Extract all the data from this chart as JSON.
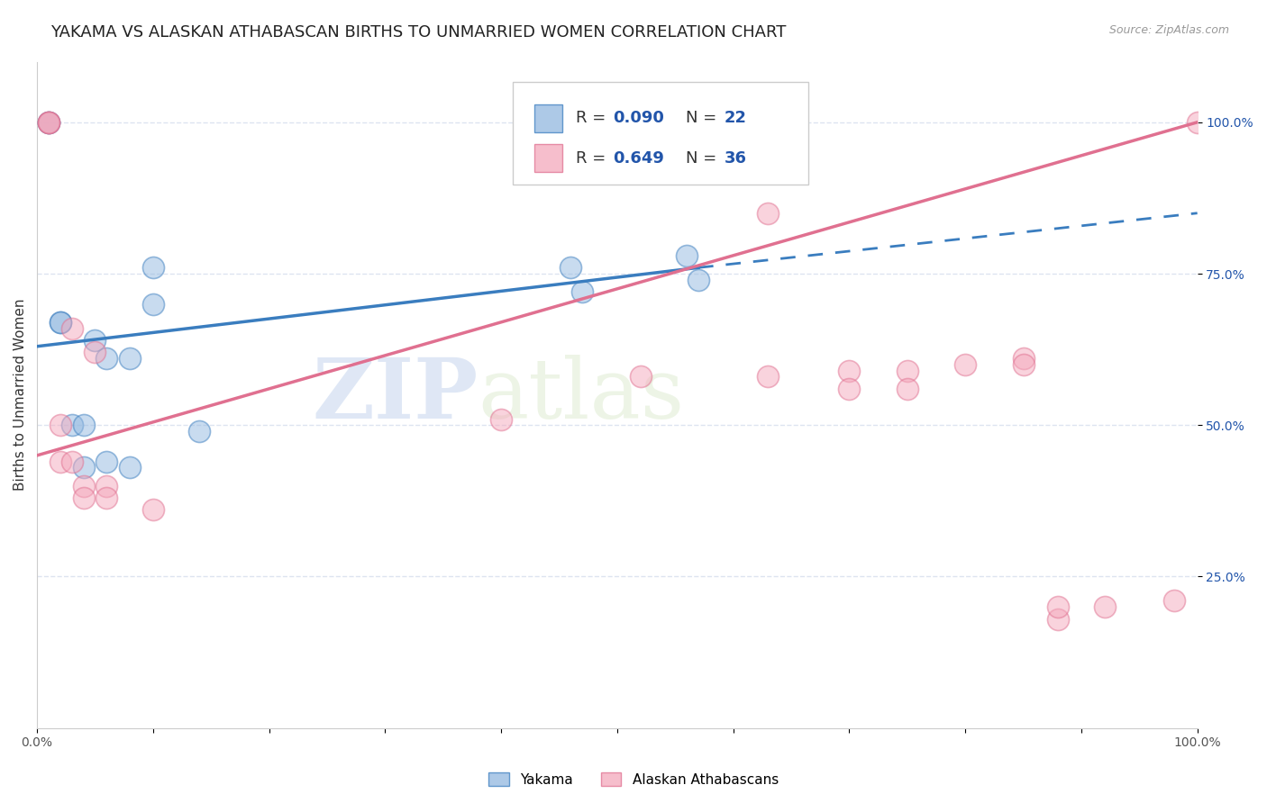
{
  "title": "YAKAMA VS ALASKAN ATHABASCAN BIRTHS TO UNMARRIED WOMEN CORRELATION CHART",
  "source": "Source: ZipAtlas.com",
  "ylabel": "Births to Unmarried Women",
  "watermark_zip": "ZIP",
  "watermark_atlas": "atlas",
  "yakama_color": "#92b8e0",
  "athabascan_color": "#f4a8bc",
  "yakama_line_color": "#3a7dbf",
  "athabascan_line_color": "#e07090",
  "yakama_points_x": [
    0.01,
    0.01,
    0.02,
    0.02,
    0.03,
    0.04,
    0.04,
    0.05,
    0.06,
    0.06,
    0.08,
    0.08,
    0.1,
    0.1,
    0.14,
    0.46,
    0.47,
    0.56,
    0.57
  ],
  "yakama_points_y": [
    1.0,
    1.0,
    0.67,
    0.67,
    0.5,
    0.43,
    0.5,
    0.64,
    0.44,
    0.61,
    0.43,
    0.61,
    0.76,
    0.7,
    0.49,
    0.76,
    0.72,
    0.78,
    0.74
  ],
  "athabascan_points_x": [
    0.01,
    0.01,
    0.01,
    0.02,
    0.02,
    0.03,
    0.03,
    0.04,
    0.04,
    0.05,
    0.06,
    0.06,
    0.1,
    0.4,
    0.52,
    0.63,
    0.63,
    0.7,
    0.7,
    0.75,
    0.75,
    0.8,
    0.85,
    0.85,
    0.88,
    0.88,
    0.92,
    0.98,
    1.0
  ],
  "athabascan_points_y": [
    1.0,
    1.0,
    1.0,
    0.5,
    0.44,
    0.44,
    0.66,
    0.4,
    0.38,
    0.62,
    0.4,
    0.38,
    0.36,
    0.51,
    0.58,
    0.85,
    0.58,
    0.59,
    0.56,
    0.59,
    0.56,
    0.6,
    0.61,
    0.6,
    0.18,
    0.2,
    0.2,
    0.21,
    1.0
  ],
  "yakama_line_x0": 0.0,
  "yakama_line_x1": 0.57,
  "yakama_line_x2": 1.0,
  "yakama_line_y0": 0.63,
  "yakama_line_y1": 0.76,
  "yakama_line_y2": 0.85,
  "athabascan_line_x0": 0.0,
  "athabascan_line_x1": 1.0,
  "athabascan_line_y0": 0.45,
  "athabascan_line_y1": 1.0,
  "xlim": [
    0.0,
    1.0
  ],
  "ylim": [
    0.0,
    1.1
  ],
  "yticks": [
    0.25,
    0.5,
    0.75,
    1.0
  ],
  "ytick_labels": [
    "25.0%",
    "50.0%",
    "75.0%",
    "100.0%"
  ],
  "xticks": [
    0.0,
    0.1,
    0.2,
    0.3,
    0.4,
    0.5,
    0.6,
    0.7,
    0.8,
    0.9,
    1.0
  ],
  "xtick_labels": [
    "0.0%",
    "",
    "",
    "",
    "",
    "",
    "",
    "",
    "",
    "",
    "100.0%"
  ],
  "grid_color": "#dde4f0",
  "background_color": "#ffffff",
  "title_fontsize": 13,
  "axis_label_fontsize": 11,
  "tick_fontsize": 10,
  "legend_color": "#2255aa"
}
